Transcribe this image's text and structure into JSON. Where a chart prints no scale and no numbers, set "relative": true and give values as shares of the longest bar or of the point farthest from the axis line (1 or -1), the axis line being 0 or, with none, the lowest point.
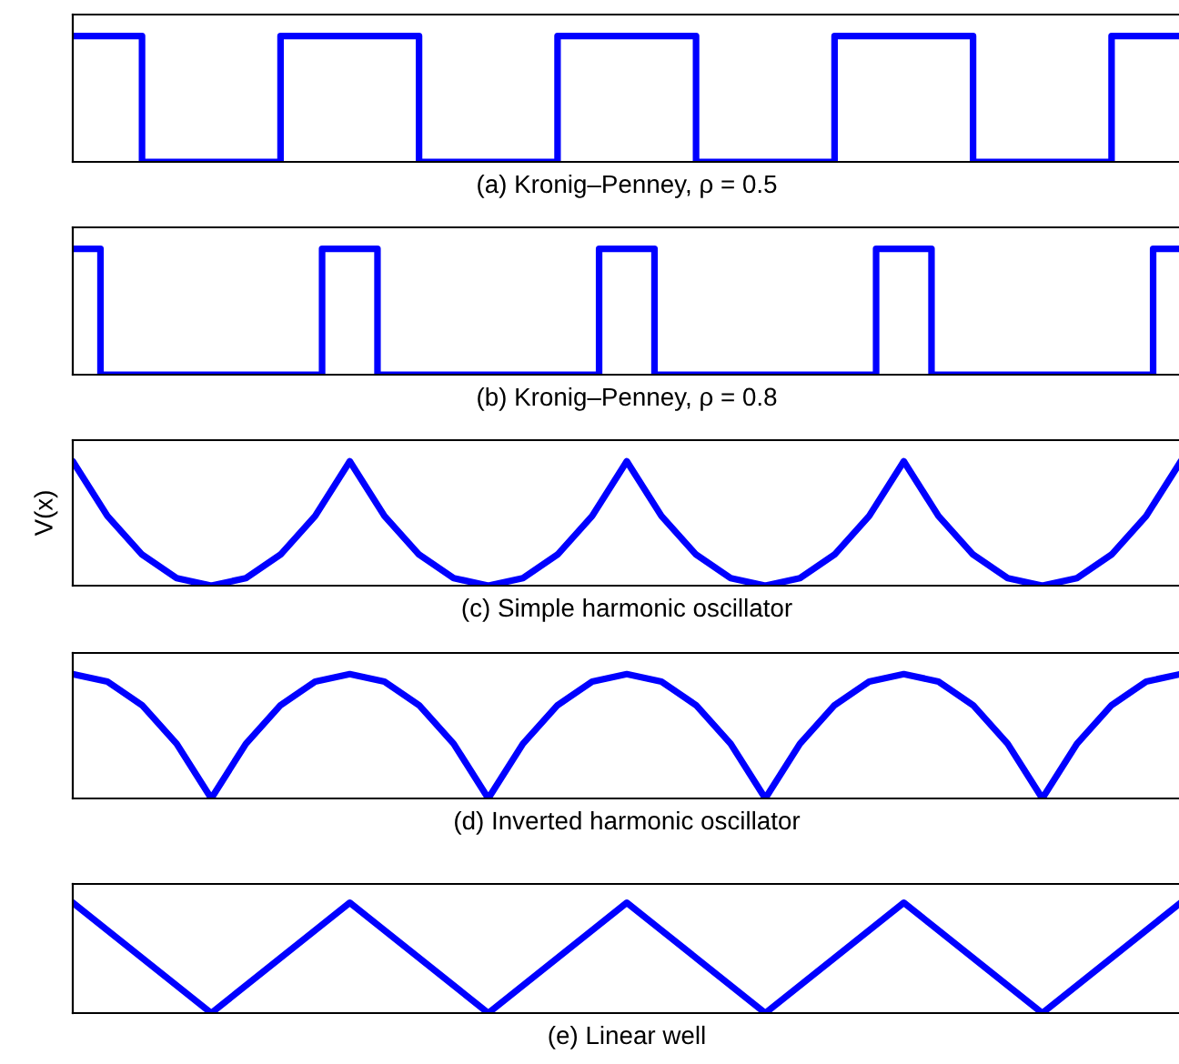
{
  "chart_data": [
    {
      "type": "step",
      "xlabel": "(a) Kronig–Penney, ρ = 0.5",
      "relative": true,
      "tick_labels": false,
      "categories": [
        null,
        null,
        null,
        null,
        null,
        null,
        null,
        null,
        null,
        null,
        null,
        null,
        null,
        null,
        null,
        null,
        null
      ],
      "series": [
        {
          "color": "#0000ff",
          "values": [
            1,
            0,
            0,
            1,
            1,
            0,
            0,
            1,
            1,
            0,
            0,
            1,
            1,
            0,
            0,
            1,
            1
          ]
        }
      ]
    },
    {
      "type": "step",
      "xlabel": "(b) Kronig–Penney, ρ = 0.8",
      "relative": true,
      "tick_labels": false,
      "categories": [
        null,
        null,
        null,
        null,
        null,
        null,
        null,
        null,
        null,
        null,
        null,
        null,
        null,
        null,
        null,
        null,
        null,
        null,
        null,
        null,
        null,
        null,
        null,
        null,
        null,
        null,
        null,
        null,
        null,
        null,
        null,
        null,
        null,
        null,
        null,
        null,
        null,
        null,
        null,
        null,
        null
      ],
      "series": [
        {
          "color": "#0000ff",
          "values": [
            1,
            0,
            0,
            0,
            0,
            0,
            0,
            0,
            0,
            1,
            1,
            0,
            0,
            0,
            0,
            0,
            0,
            0,
            0,
            1,
            1,
            0,
            0,
            0,
            0,
            0,
            0,
            0,
            0,
            1,
            1,
            0,
            0,
            0,
            0,
            0,
            0,
            0,
            0,
            1,
            1
          ]
        }
      ]
    },
    {
      "type": "line",
      "xlabel": "(c) Simple harmonic oscillator",
      "ylabel": "V(x)",
      "relative": true,
      "tick_labels": false,
      "categories": [
        null,
        null,
        null,
        null,
        null,
        null,
        null,
        null,
        null,
        null,
        null,
        null,
        null,
        null,
        null,
        null,
        null,
        null,
        null,
        null,
        null,
        null,
        null,
        null,
        null,
        null,
        null,
        null,
        null,
        null,
        null,
        null,
        null
      ],
      "series": [
        {
          "color": "#0000ff",
          "values": [
            1,
            0.56,
            0.25,
            0.06,
            0,
            0.06,
            0.25,
            0.56,
            1,
            0.56,
            0.25,
            0.06,
            0,
            0.06,
            0.25,
            0.56,
            1,
            0.56,
            0.25,
            0.06,
            0,
            0.06,
            0.25,
            0.56,
            1,
            0.56,
            0.25,
            0.06,
            0,
            0.06,
            0.25,
            0.56,
            1
          ]
        }
      ]
    },
    {
      "type": "line",
      "xlabel": "(d) Inverted harmonic oscillator",
      "relative": true,
      "tick_labels": false,
      "categories": [
        null,
        null,
        null,
        null,
        null,
        null,
        null,
        null,
        null,
        null,
        null,
        null,
        null,
        null,
        null,
        null,
        null,
        null,
        null,
        null,
        null,
        null,
        null,
        null,
        null,
        null,
        null,
        null,
        null,
        null,
        null,
        null,
        null
      ],
      "series": [
        {
          "color": "#0000ff",
          "values": [
            1,
            0.94,
            0.75,
            0.44,
            0,
            0.44,
            0.75,
            0.94,
            1,
            0.94,
            0.75,
            0.44,
            0,
            0.44,
            0.75,
            0.94,
            1,
            0.94,
            0.75,
            0.44,
            0,
            0.44,
            0.75,
            0.94,
            1,
            0.94,
            0.75,
            0.44,
            0,
            0.44,
            0.75,
            0.94,
            1
          ]
        }
      ]
    },
    {
      "type": "line",
      "xlabel": "(e) Linear well",
      "relative": true,
      "tick_labels": false,
      "categories": [
        null,
        null,
        null,
        null,
        null,
        null,
        null,
        null,
        null
      ],
      "series": [
        {
          "color": "#0000ff",
          "values": [
            1,
            0,
            1,
            0,
            1,
            0,
            1,
            0,
            1
          ]
        }
      ]
    }
  ]
}
